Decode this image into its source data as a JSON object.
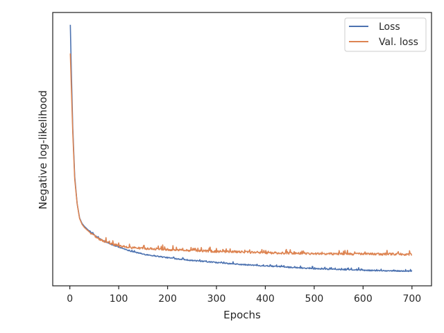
{
  "chart_data": {
    "type": "line",
    "xlabel": "Epochs",
    "ylabel": "Negative log-likelihood",
    "xlim": [
      -35,
      740
    ],
    "ylim": [
      0.0,
      1.0
    ],
    "xticks": [
      0,
      100,
      200,
      300,
      400,
      500,
      600,
      700
    ],
    "yticks_shown": false,
    "grid": false,
    "legend_position": "top-right",
    "x": [
      1,
      3,
      6,
      10,
      15,
      20,
      25,
      30,
      40,
      50,
      60,
      80,
      100,
      125,
      150,
      200,
      250,
      300,
      350,
      400,
      450,
      500,
      550,
      600,
      650,
      700
    ],
    "series": [
      {
        "name": "Loss",
        "color": "#4c72b0",
        "noise": 0.002,
        "values": [
          0.955,
          0.79,
          0.58,
          0.4,
          0.3,
          0.248,
          0.228,
          0.217,
          0.2,
          0.186,
          0.173,
          0.155,
          0.142,
          0.127,
          0.116,
          0.103,
          0.093,
          0.085,
          0.078,
          0.073,
          0.068,
          0.063,
          0.06,
          0.057,
          0.055,
          0.054
        ]
      },
      {
        "name": "Val. loss",
        "color": "#dd8452",
        "noise": 0.004,
        "values": [
          0.85,
          0.73,
          0.56,
          0.39,
          0.3,
          0.246,
          0.225,
          0.213,
          0.197,
          0.183,
          0.171,
          0.156,
          0.146,
          0.14,
          0.137,
          0.133,
          0.129,
          0.126,
          0.124,
          0.121,
          0.119,
          0.118,
          0.117,
          0.116,
          0.116,
          0.115
        ]
      }
    ]
  }
}
